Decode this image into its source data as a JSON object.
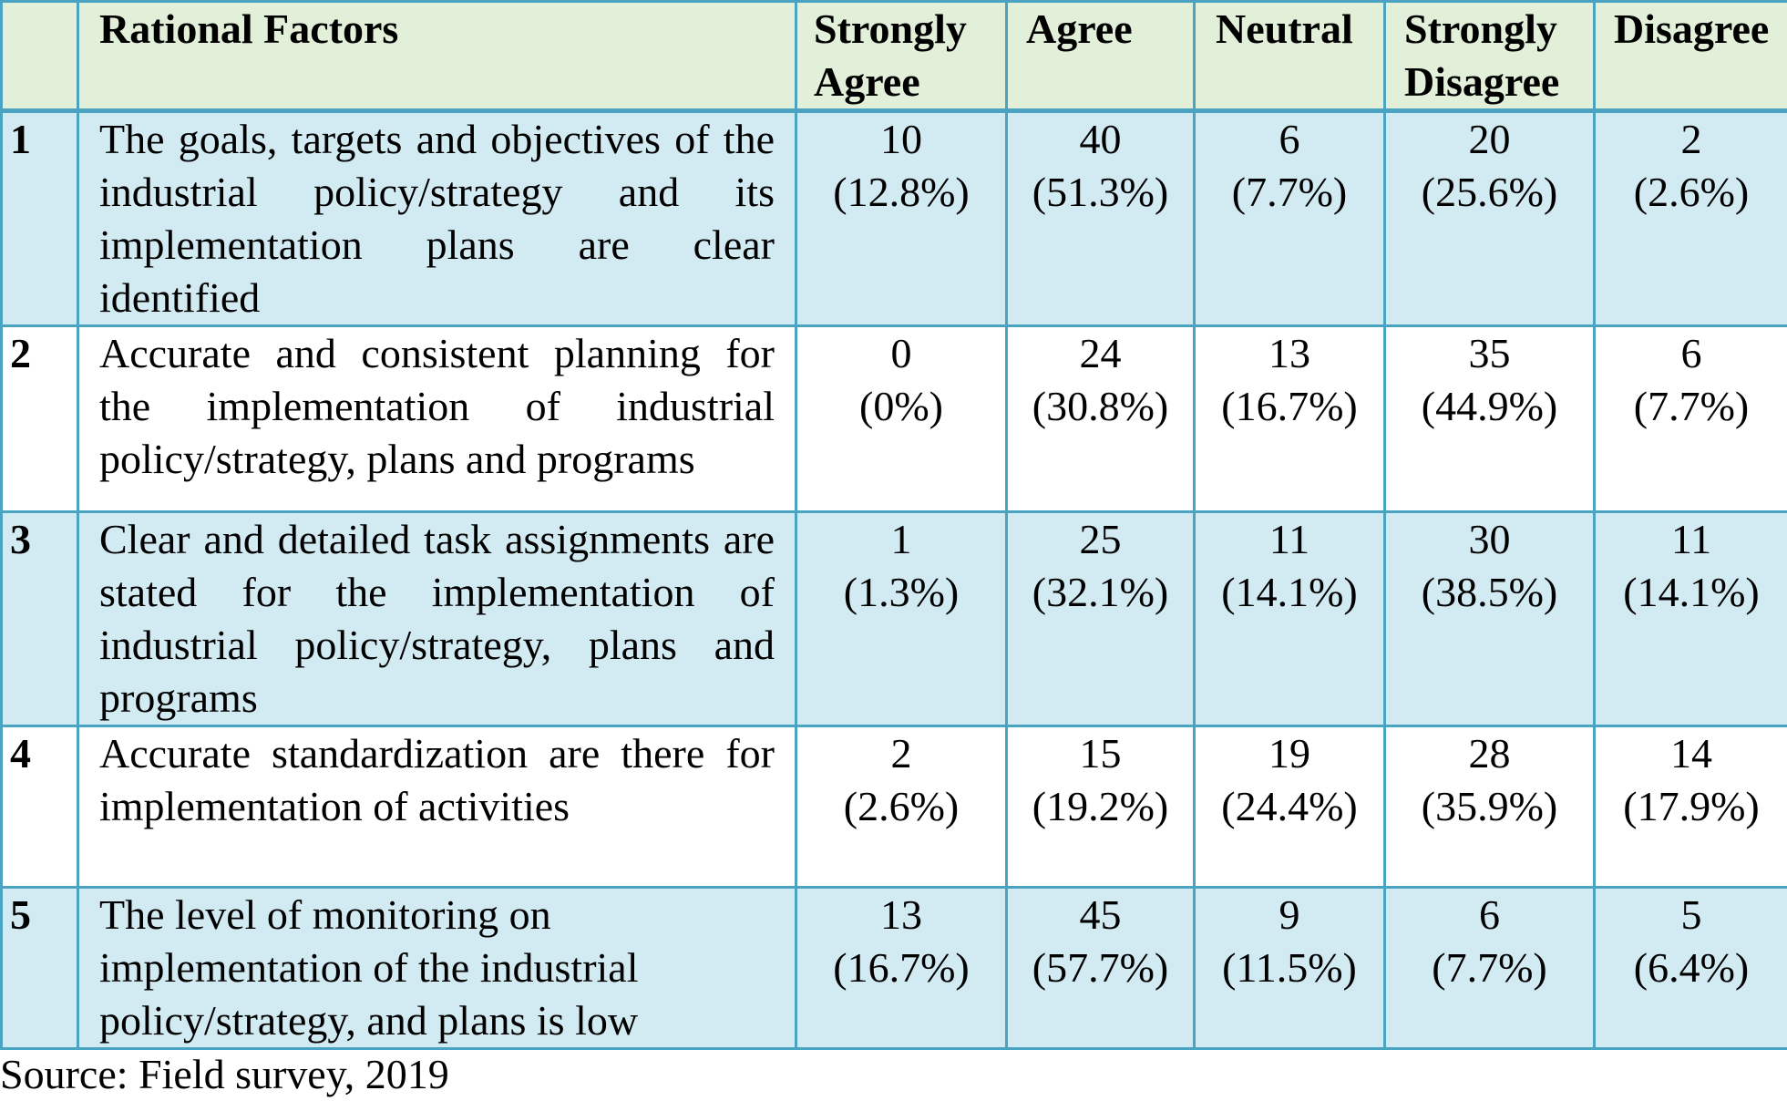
{
  "headers": {
    "num": "",
    "factor": "Rational Factors",
    "strongly_agree": "Strongly Agree",
    "agree": "Agree",
    "neutral": "Neutral",
    "strongly_disagree": "Strongly Disagree",
    "disagree": "Disagree"
  },
  "rows": [
    {
      "num": "1",
      "factor": "The goals, targets and objectives of the industrial policy/strategy and its implementation plans are clear identified",
      "strongly_agree": {
        "count": "10",
        "pct": "(12.8%)"
      },
      "agree": {
        "count": "40",
        "pct": "(51.3%)"
      },
      "neutral": {
        "count": "6",
        "pct": "(7.7%)"
      },
      "strongly_disagree": {
        "count": "20",
        "pct": "(25.6%)"
      },
      "disagree": {
        "count": "2",
        "pct": "(2.6%)"
      }
    },
    {
      "num": "2",
      "factor": "Accurate and consistent planning for the implementation of industrial policy/strategy, plans and programs",
      "strongly_agree": {
        "count": "0",
        "pct": "(0%)"
      },
      "agree": {
        "count": "24",
        "pct": "(30.8%)"
      },
      "neutral": {
        "count": "13",
        "pct": "(16.7%)"
      },
      "strongly_disagree": {
        "count": "35",
        "pct": "(44.9%)"
      },
      "disagree": {
        "count": "6",
        "pct": "(7.7%)"
      }
    },
    {
      "num": "3",
      "factor": "Clear and detailed task assignments are stated for the implementation of industrial policy/strategy, plans and programs",
      "strongly_agree": {
        "count": "1",
        "pct": "(1.3%)"
      },
      "agree": {
        "count": "25",
        "pct": "(32.1%)"
      },
      "neutral": {
        "count": "11",
        "pct": "(14.1%)"
      },
      "strongly_disagree": {
        "count": "30",
        "pct": "(38.5%)"
      },
      "disagree": {
        "count": "11",
        "pct": "(14.1%)"
      }
    },
    {
      "num": "4",
      "factor": "Accurate standardization are there for implementation of activities",
      "strongly_agree": {
        "count": "2",
        "pct": "(2.6%)"
      },
      "agree": {
        "count": "15",
        "pct": "(19.2%)"
      },
      "neutral": {
        "count": "19",
        "pct": "(24.4%)"
      },
      "strongly_disagree": {
        "count": "28",
        "pct": "(35.9%)"
      },
      "disagree": {
        "count": "14",
        "pct": "(17.9%)"
      }
    },
    {
      "num": "5",
      "factor": "The level of monitoring on implementation of the industrial policy/strategy, and plans is low",
      "strongly_agree": {
        "count": "13",
        "pct": "(16.7%)"
      },
      "agree": {
        "count": "45",
        "pct": "(57.7%)"
      },
      "neutral": {
        "count": "9",
        "pct": "(11.5%)"
      },
      "strongly_disagree": {
        "count": "6",
        "pct": "(7.7%)"
      },
      "disagree": {
        "count": "5",
        "pct": "(6.4%)"
      }
    }
  ],
  "source": "Source: Field survey, 2019",
  "colors": {
    "header_bg": "#e2efd9",
    "row_shade": "#d2eaf1",
    "border": "#4aa3c0"
  }
}
